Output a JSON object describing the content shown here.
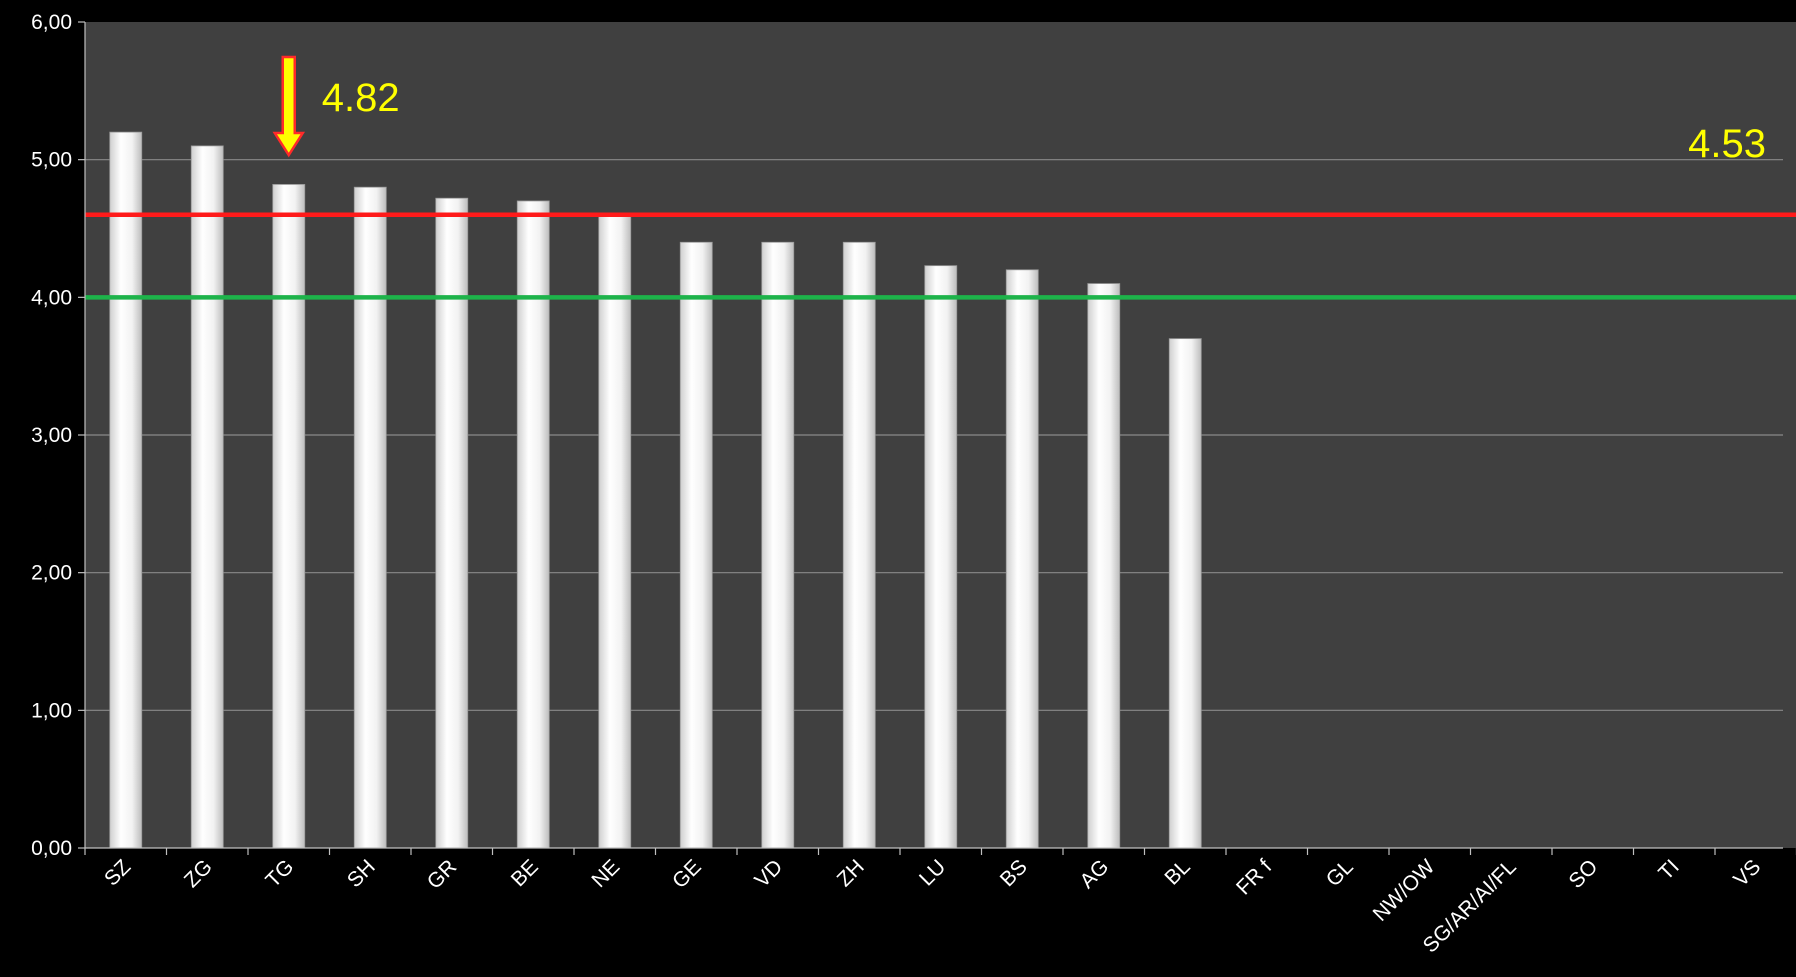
{
  "chart_data": {
    "type": "bar",
    "categories": [
      "SZ",
      "ZG",
      "TG",
      "SH",
      "GR",
      "BE",
      "NE",
      "GE",
      "VD",
      "ZH",
      "LU",
      "BS",
      "AG",
      "BL",
      "FR f",
      "GL",
      "NW/OW",
      "SG/AR/AI/FL",
      "SO",
      "TI",
      "VS"
    ],
    "values": [
      5.2,
      5.1,
      4.82,
      4.8,
      4.72,
      4.7,
      4.6,
      4.4,
      4.4,
      4.4,
      4.23,
      4.2,
      4.1,
      3.7,
      null,
      null,
      null,
      null,
      null,
      null,
      null
    ],
    "yticks": [
      "0,00",
      "1,00",
      "2,00",
      "3,00",
      "4,00",
      "5,00",
      "6,00"
    ],
    "ylim": [
      0,
      6
    ],
    "grid": true,
    "reference_lines": [
      {
        "value": 4.6,
        "color": "#ff1a1a"
      },
      {
        "value": 4.0,
        "color": "#1db34a"
      }
    ],
    "annotations": [
      {
        "text": "4.82",
        "category": "TG",
        "color": "#ffff00"
      },
      {
        "text": "4.53",
        "color": "#ffff00"
      }
    ],
    "colors": {
      "background": "#000000",
      "plot_area": "#404040",
      "bar": "#f0f0f0",
      "arrow": "#ffff00",
      "arrow_outline": "#ff2a2a"
    }
  }
}
